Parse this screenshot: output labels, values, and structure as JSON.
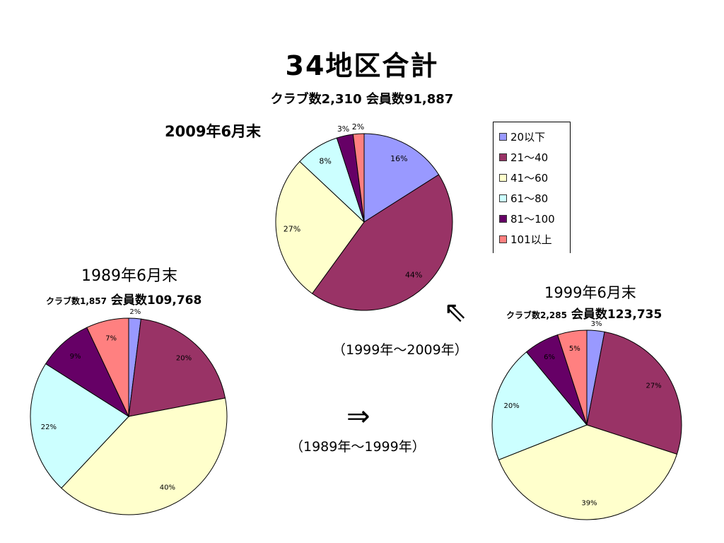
{
  "title": "34地区合計",
  "summary_2009": "クラブ数2,310 会員数91,887",
  "arrows": {
    "up": "⇑",
    "right": "⇒",
    "range_1999_2009": "（1999年～2009年）",
    "range_1989_1999": "（1989年～1999年）"
  },
  "colors": [
    "#9999ff",
    "#993366",
    "#ffffcc",
    "#ccffff",
    "#660066",
    "#ff8080"
  ],
  "legend": [
    "20以下",
    "21～40",
    "41～60",
    "61～80",
    "81～100",
    "101以上"
  ],
  "chart_data": [
    {
      "type": "pie",
      "title": "2009年6月末",
      "subtitle": "クラブ数2,310 会員数91,887",
      "categories": [
        "20以下",
        "21～40",
        "41～60",
        "61～80",
        "81～100",
        "101以上"
      ],
      "values": [
        16,
        44,
        27,
        8,
        3,
        2
      ],
      "labels": [
        "16%",
        "44%",
        "27%",
        "8%",
        "3%",
        "2%"
      ],
      "legend": "right"
    },
    {
      "type": "pie",
      "title": "1989年6月末",
      "subtitle_count": "クラブ数1,857",
      "subtitle_members": "会員数109,768",
      "categories": [
        "20以下",
        "21～40",
        "41～60",
        "61～80",
        "81～100",
        "101以上"
      ],
      "values": [
        2,
        20,
        40,
        22,
        9,
        7
      ],
      "labels": [
        "2%",
        "20%",
        "40%",
        "22%",
        "9%",
        "7%"
      ]
    },
    {
      "type": "pie",
      "title": "1999年6月末",
      "subtitle_count": "クラブ数2,285",
      "subtitle_members": "会員数123,735",
      "categories": [
        "20以下",
        "21～40",
        "41～60",
        "61～80",
        "81～100",
        "101以上"
      ],
      "values": [
        3,
        27,
        39,
        20,
        6,
        5
      ],
      "labels": [
        "3%",
        "27%",
        "39%",
        "20%",
        "6%",
        "5%"
      ]
    }
  ]
}
